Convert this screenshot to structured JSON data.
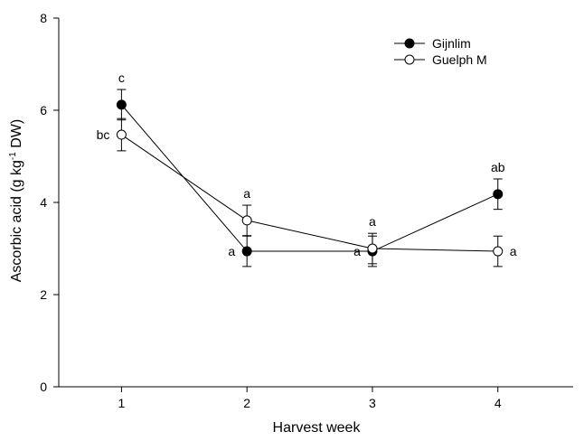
{
  "chart_data": {
    "type": "line",
    "title": "",
    "xlabel": "Harvest week",
    "ylabel_main": "Ascorbic acid (g kg",
    "ylabel_sup": "-1",
    "ylabel_tail": " DW)",
    "xlim": [
      0.5,
      4.6
    ],
    "ylim": [
      0,
      8
    ],
    "x_ticks": [
      1,
      2,
      3,
      4
    ],
    "x_tick_labels": [
      "1",
      "2",
      "3",
      "4"
    ],
    "y_ticks": [
      0,
      2,
      4,
      6,
      8
    ],
    "y_tick_labels": [
      "0",
      "2",
      "4",
      "6",
      "8"
    ],
    "grid": false,
    "legend_position": "top-right",
    "series": [
      {
        "name": "Gijnlim",
        "marker": "filled-circle",
        "color": "#000000",
        "x": [
          1,
          2,
          3,
          4
        ],
        "y": [
          6.12,
          2.94,
          2.94,
          4.18
        ],
        "error": [
          0.33,
          0.33,
          0.33,
          0.33
        ],
        "labels": [
          "c",
          "a",
          "a",
          "ab"
        ],
        "label_pos": [
          "above",
          "left",
          "left",
          "above"
        ]
      },
      {
        "name": "Guelph M",
        "marker": "open-circle",
        "color": "#000000",
        "x": [
          1,
          2,
          3,
          4
        ],
        "y": [
          5.47,
          3.61,
          3.0,
          2.94
        ],
        "error": [
          0.35,
          0.33,
          0.33,
          0.33
        ],
        "labels": [
          "bc",
          "a",
          "a",
          "a"
        ],
        "label_pos": [
          "left",
          "above",
          "above",
          "right"
        ]
      }
    ]
  }
}
